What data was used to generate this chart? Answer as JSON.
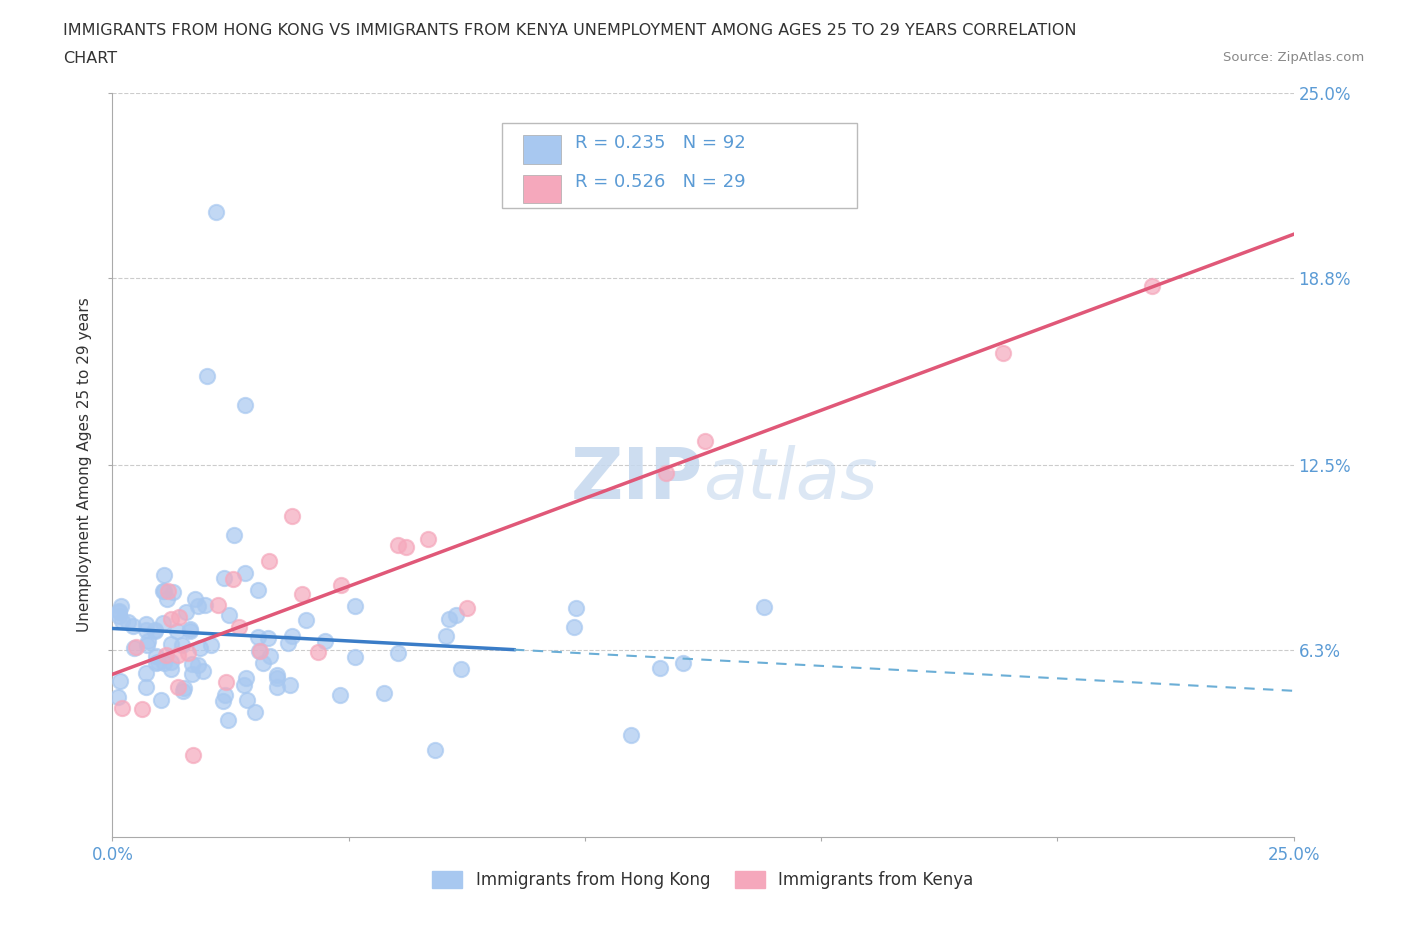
{
  "title_line1": "IMMIGRANTS FROM HONG KONG VS IMMIGRANTS FROM KENYA UNEMPLOYMENT AMONG AGES 25 TO 29 YEARS CORRELATION",
  "title_line2": "CHART",
  "source": "Source: ZipAtlas.com",
  "ylabel": "Unemployment Among Ages 25 to 29 years",
  "xlim": [
    0.0,
    0.25
  ],
  "ylim": [
    0.0,
    0.25
  ],
  "ytick_positions": [
    0.063,
    0.125,
    0.188,
    0.25
  ],
  "ytick_labels": [
    "6.3%",
    "12.5%",
    "18.8%",
    "25.0%"
  ],
  "hk_color": "#a8c8f0",
  "kenya_color": "#f5a8bc",
  "hk_R": 0.235,
  "hk_N": 92,
  "kenya_R": 0.526,
  "kenya_N": 29,
  "legend_label_hk": "Immigrants from Hong Kong",
  "legend_label_kenya": "Immigrants from Kenya",
  "watermark_color": "#dce8f5",
  "trend_hk_solid_color": "#3a7cc7",
  "trend_hk_dash_color": "#6baed6",
  "trend_kenya_color": "#e05878",
  "background_color": "#ffffff",
  "label_color": "#5b9bd5",
  "text_color": "#333333"
}
